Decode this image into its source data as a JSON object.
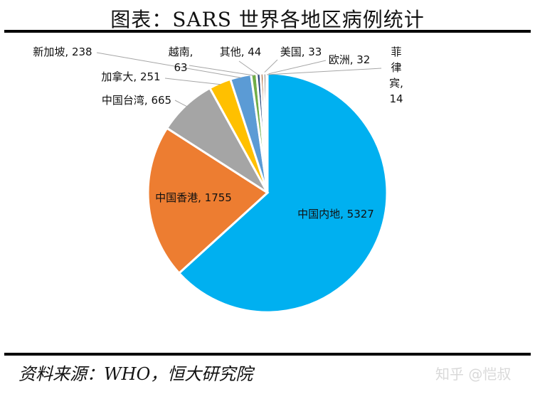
{
  "title": "图表：SARS 世界各地区病例统计",
  "source": "资料来源：WHO，恒大研究院",
  "watermark": "知乎 @恺叔",
  "chart_data": {
    "type": "pie",
    "title": "图表：SARS 世界各地区病例统计",
    "slices": [
      {
        "label": "中国内地",
        "value": 5327,
        "color": "#00b0f0"
      },
      {
        "label": "中国香港",
        "value": 1755,
        "color": "#ed7d31"
      },
      {
        "label": "中国台湾",
        "value": 665,
        "color": "#a5a5a5"
      },
      {
        "label": "加拿大",
        "value": 251,
        "color": "#ffc000"
      },
      {
        "label": "新加坡",
        "value": 238,
        "color": "#5b9bd5"
      },
      {
        "label": "越南",
        "value": 63,
        "color": "#70ad47"
      },
      {
        "label": "其他",
        "value": 44,
        "color": "#264478"
      },
      {
        "label": "美国",
        "value": 33,
        "color": "#9e480e"
      },
      {
        "label": "欧洲",
        "value": 32,
        "color": "#636363"
      },
      {
        "label": "菲律宾",
        "value": 14,
        "color": "#997300"
      }
    ]
  }
}
